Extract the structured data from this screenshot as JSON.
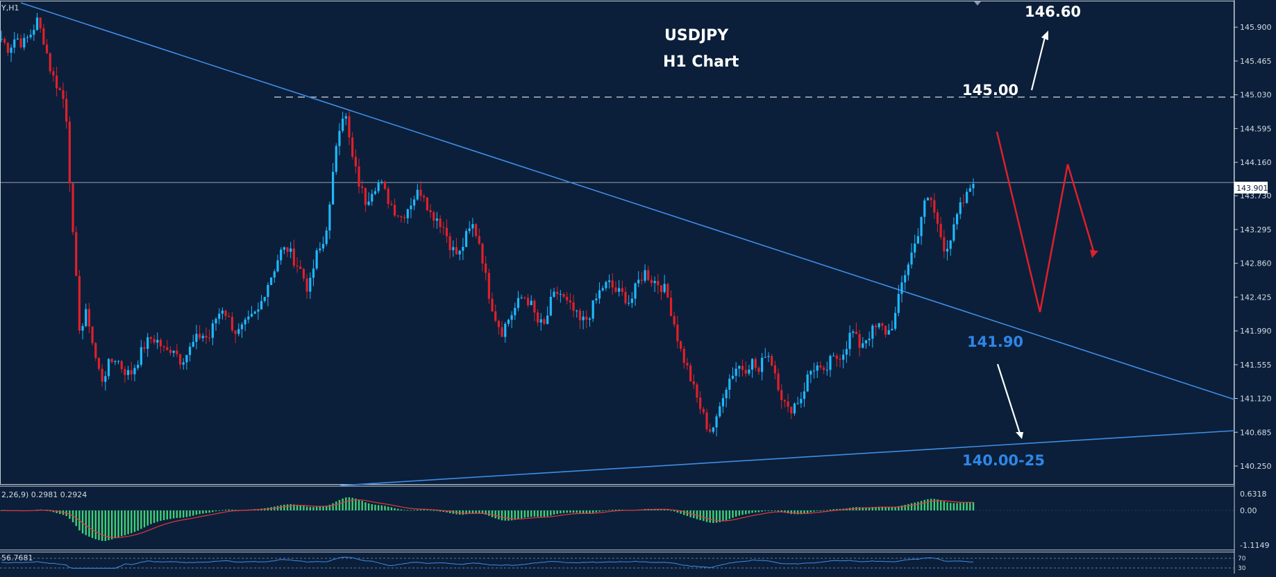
{
  "chart_data": [
    {
      "type": "candlestick",
      "symbol_label": "Y,H1",
      "title": "USDJPY",
      "subtitle": "H1 Chart",
      "y_ticks": [
        "145.900",
        "145.465",
        "145.030",
        "144.595",
        "144.160",
        "143.730",
        "143.295",
        "142.860",
        "142.425",
        "141.990",
        "141.555",
        "141.120",
        "140.685",
        "140.250"
      ],
      "ylim": [
        140.0,
        146.25
      ],
      "current_price": "143.901",
      "close_path": [
        145.75,
        145.62,
        145.78,
        145.68,
        145.8,
        145.98,
        145.72,
        145.3,
        145.12,
        144.9,
        143.2,
        141.95,
        142.25,
        141.7,
        141.35,
        141.55,
        141.65,
        141.5,
        141.42,
        141.6,
        141.8,
        141.9,
        141.85,
        141.7,
        141.8,
        141.62,
        141.7,
        141.85,
        141.95,
        141.88,
        142.15,
        142.3,
        142.1,
        141.95,
        142.05,
        142.15,
        142.25,
        142.55,
        142.75,
        143.0,
        143.05,
        142.9,
        142.75,
        142.5,
        142.95,
        143.1,
        143.6,
        144.55,
        144.85,
        144.25,
        143.9,
        143.65,
        143.85,
        143.9,
        143.7,
        143.55,
        143.45,
        143.6,
        143.75,
        143.8,
        143.5,
        143.45,
        143.3,
        143.05,
        142.95,
        143.2,
        143.35,
        143.1,
        142.55,
        142.2,
        141.98,
        142.15,
        142.3,
        142.45,
        142.35,
        142.1,
        142.05,
        142.4,
        142.5,
        142.35,
        142.25,
        142.1,
        142.15,
        142.35,
        142.55,
        142.6,
        142.5,
        142.45,
        142.35,
        142.6,
        142.75,
        142.65,
        142.6,
        142.5,
        142.15,
        141.75,
        141.5,
        141.2,
        140.95,
        140.7,
        140.8,
        141.2,
        141.4,
        141.55,
        141.5,
        141.6,
        141.45,
        141.75,
        141.55,
        141.2,
        140.95,
        141.05,
        141.15,
        141.45,
        141.55,
        141.4,
        141.6,
        141.65,
        141.75,
        142.0,
        141.8,
        141.9,
        142.0,
        142.05,
        141.95,
        142.15,
        142.6,
        142.9,
        143.15,
        143.6,
        143.7,
        143.35,
        143.05,
        143.2,
        143.55,
        143.7,
        143.95
      ]
    },
    {
      "type": "histogram",
      "indicator_label": "2,26,9) 0.2981 0.2924",
      "y_ticks": [
        "0.6318",
        "0.00",
        "-1.1149"
      ],
      "ylim": [
        -1.1149,
        0.6318
      ]
    },
    {
      "type": "line",
      "indicator_label": "56.7681",
      "y_ticks": [
        "70",
        "30"
      ],
      "ylim": [
        0,
        100
      ]
    }
  ],
  "annotations": {
    "target_up": "146.60",
    "resistance": "145.00",
    "support_mid": "141.90",
    "support_low": "140.00-25"
  },
  "colors": {
    "background": "#0b1f3a",
    "bull": "#1fb8ff",
    "bear": "#e0202a",
    "trendline": "#3f8de6",
    "macd_bar": "#3fd176",
    "signal": "#e8383a",
    "label_blue": "#2f86e8",
    "text": "#ffffff"
  }
}
